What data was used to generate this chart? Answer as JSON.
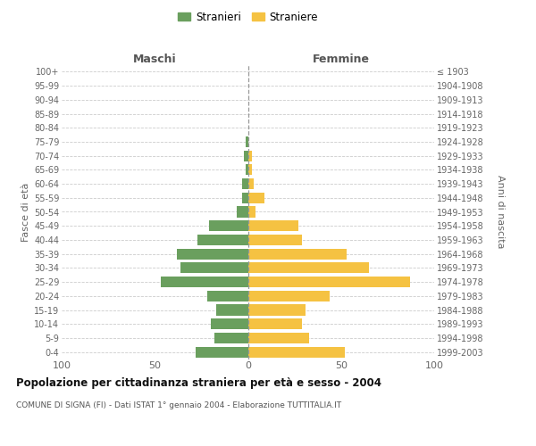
{
  "age_groups": [
    "0-4",
    "5-9",
    "10-14",
    "15-19",
    "20-24",
    "25-29",
    "30-34",
    "35-39",
    "40-44",
    "45-49",
    "50-54",
    "55-59",
    "60-64",
    "65-69",
    "70-74",
    "75-79",
    "80-84",
    "85-89",
    "90-94",
    "95-99",
    "100+"
  ],
  "birth_years": [
    "1999-2003",
    "1994-1998",
    "1989-1993",
    "1984-1988",
    "1979-1983",
    "1974-1978",
    "1969-1973",
    "1964-1968",
    "1959-1963",
    "1954-1958",
    "1949-1953",
    "1944-1948",
    "1939-1943",
    "1934-1938",
    "1929-1933",
    "1924-1928",
    "1919-1923",
    "1914-1918",
    "1909-1913",
    "1904-1908",
    "≤ 1903"
  ],
  "maschi": [
    28,
    18,
    20,
    17,
    22,
    47,
    36,
    38,
    27,
    21,
    6,
    3,
    3,
    1,
    2,
    1,
    0,
    0,
    0,
    0,
    0
  ],
  "femmine": [
    52,
    33,
    29,
    31,
    44,
    87,
    65,
    53,
    29,
    27,
    4,
    9,
    3,
    2,
    2,
    0,
    0,
    0,
    0,
    0,
    0
  ],
  "male_color": "#6a9f5e",
  "female_color": "#f5c242",
  "title": "Popolazione per cittadinanza straniera per età e sesso - 2004",
  "subtitle": "COMUNE DI SIGNA (FI) - Dati ISTAT 1° gennaio 2004 - Elaborazione TUTTITALIA.IT",
  "label_maschi": "Maschi",
  "label_femmine": "Femmine",
  "ylabel_left": "Fasce di età",
  "ylabel_right": "Anni di nascita",
  "legend_male": "Stranieri",
  "legend_female": "Straniere",
  "xlim": 100,
  "bg_color": "#ffffff",
  "grid_color": "#cccccc"
}
